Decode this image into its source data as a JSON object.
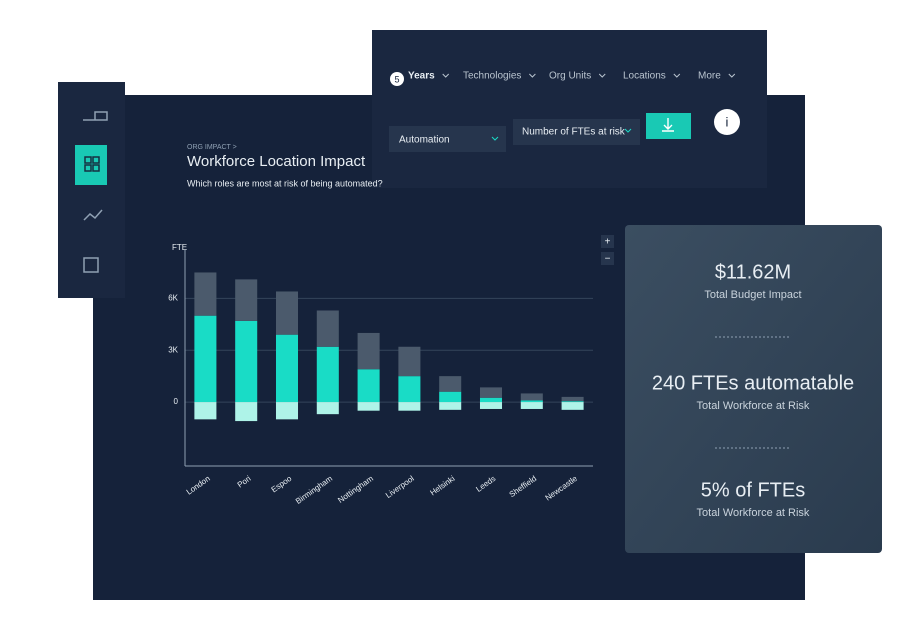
{
  "breadcrumb": "ORG IMPACT >",
  "title": "Workforce Location Impact",
  "subtitle": "Which roles are most at risk of being automated?",
  "filters": {
    "years_count": "5",
    "tabs": [
      "Years",
      "Technologies",
      "Org Units",
      "Locations",
      "More"
    ],
    "dropdowns": [
      "Automation",
      "Number of FTEs at risk"
    ],
    "info": "i"
  },
  "zoom": [
    "+",
    "−"
  ],
  "chart_data": {
    "type": "bar",
    "stacked": true,
    "y_label": "FTE",
    "categories": [
      "London",
      "Pori",
      "Espoo",
      "Birmingham",
      "Nottingham",
      "Liverpool",
      "Helsinki",
      "Leeds",
      "Sheffield",
      "Newcastle"
    ],
    "series": [
      {
        "color": "#19dcc6",
        "values": [
          5000,
          4700,
          3900,
          3200,
          1900,
          1500,
          600,
          250,
          100,
          50
        ]
      },
      {
        "color": "#4b5a6c",
        "values": [
          2500,
          2400,
          2500,
          2100,
          2100,
          1700,
          900,
          600,
          400,
          250
        ]
      },
      {
        "color": "#aef3e8",
        "values": [
          -1000,
          -1100,
          -1000,
          -700,
          -500,
          -500,
          -450,
          -400,
          -400,
          -450
        ]
      }
    ],
    "ylim": [
      -3700,
      8800
    ],
    "yticks": [
      0,
      {
        "value": 3000,
        "label": "3K"
      },
      {
        "value": 6000,
        "label": "6K"
      }
    ],
    "grid": true
  },
  "kpis": [
    {
      "value": "$11.62M",
      "label": "Total Budget Impact"
    },
    {
      "value": "240 FTEs automatable",
      "label": "Total Workforce at Risk"
    },
    {
      "value": "5% of FTEs",
      "label": "Total Workforce at Risk"
    }
  ]
}
